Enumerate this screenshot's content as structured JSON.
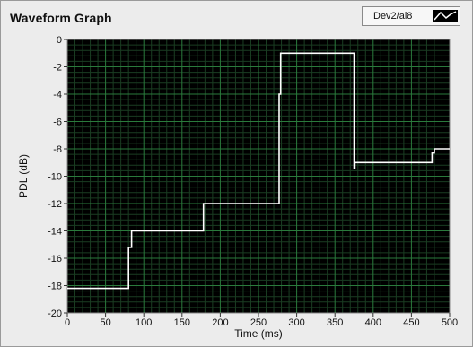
{
  "window": {
    "title": "Waveform Graph"
  },
  "legend": {
    "label": "Dev2/ai8"
  },
  "colors": {
    "plot_bg": "#000000",
    "grid_major": "#2a7a3c",
    "grid_minor": "#1a3d22",
    "trace": "#ffffff"
  },
  "chart_data": {
    "type": "line",
    "title": "Waveform Graph",
    "xlabel": "Time (ms)",
    "ylabel": "PDL (dB)",
    "xlim": [
      0,
      500
    ],
    "ylim": [
      -20,
      0
    ],
    "x_ticks": [
      0,
      50,
      100,
      150,
      200,
      250,
      300,
      350,
      400,
      450,
      500
    ],
    "y_ticks": [
      0,
      -2,
      -4,
      -6,
      -8,
      -10,
      -12,
      -14,
      -16,
      -18,
      -20
    ],
    "grid": true,
    "legend_position": "top-right",
    "series": [
      {
        "name": "Dev2/ai8",
        "x": [
          0,
          80,
          80,
          84,
          84,
          178,
          178,
          277,
          277,
          279,
          279,
          375,
          375,
          376,
          376,
          477,
          477,
          480,
          480,
          500
        ],
        "y": [
          -18.2,
          -18.2,
          -15.2,
          -15.2,
          -14.0,
          -14.0,
          -12.0,
          -12.0,
          -4.0,
          -4.0,
          -1.0,
          -1.0,
          -9.4,
          -9.4,
          -9.0,
          -9.0,
          -8.3,
          -8.3,
          -8.0,
          -8.0
        ]
      }
    ]
  }
}
